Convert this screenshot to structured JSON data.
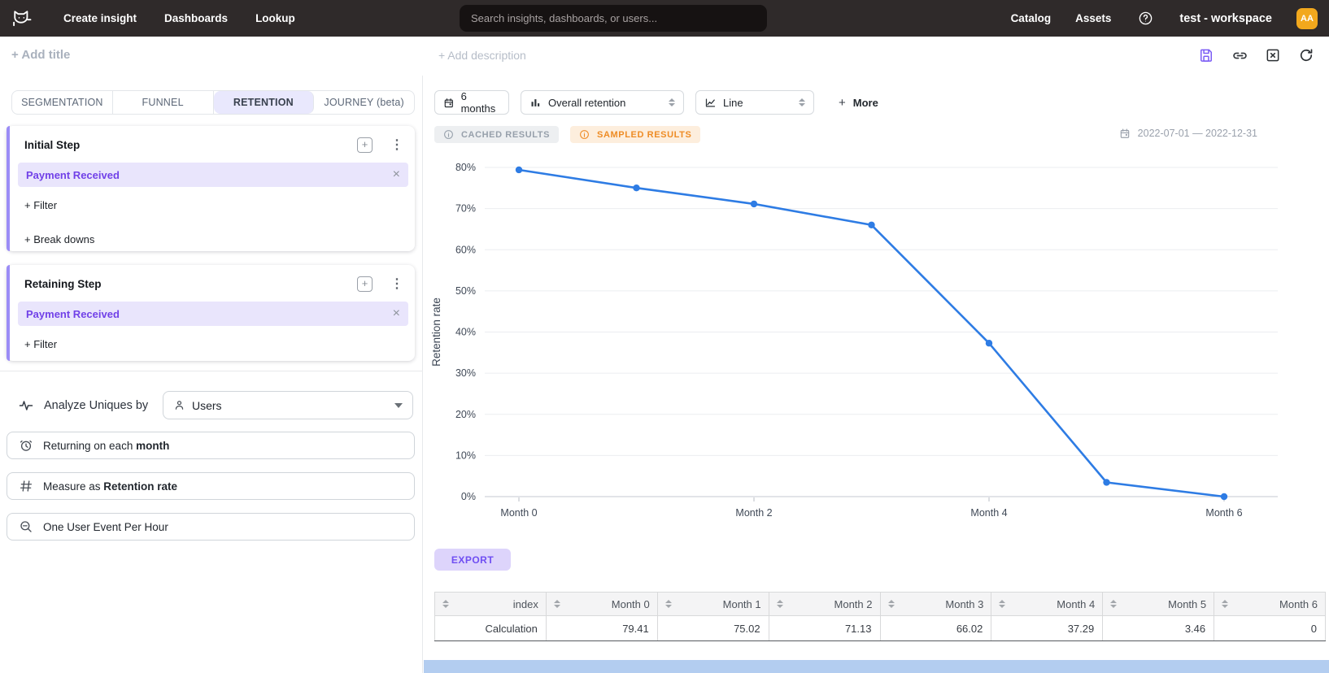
{
  "topnav": {
    "logo_name": "mitzu-cat-logo",
    "items": [
      {
        "label": "Create insight"
      },
      {
        "label": "Dashboards"
      },
      {
        "label": "Lookup"
      }
    ],
    "search_placeholder": "Search insights, dashboards, or users...",
    "right_items": [
      {
        "label": "Catalog"
      },
      {
        "label": "Assets"
      }
    ],
    "workspace": "test - workspace",
    "avatar_initials": "AA"
  },
  "header": {
    "add_title": "+ Add title",
    "add_description": "+ Add description",
    "action_icons": [
      "save-icon",
      "link-icon",
      "close-box-icon",
      "refresh-icon"
    ]
  },
  "tabs": [
    {
      "label": "SEGMENTATION",
      "active": false
    },
    {
      "label": "FUNNEL",
      "active": false
    },
    {
      "label": "RETENTION",
      "active": true
    },
    {
      "label": "JOURNEY (beta)",
      "active": false
    }
  ],
  "steps": [
    {
      "title": "Initial Step",
      "event": "Payment Received",
      "add_icon": "+",
      "actions": [
        "+ Filter",
        "+ Break downs"
      ]
    },
    {
      "title": "Retaining Step",
      "event": "Payment Received",
      "add_icon": "+",
      "actions": [
        "+ Filter"
      ]
    }
  ],
  "analyze": {
    "label": "Analyze Uniques by",
    "value": "Users"
  },
  "settings_buttons": [
    {
      "icon": "alarm-clock-icon",
      "prefix": "Returning on each ",
      "bold": "month"
    },
    {
      "icon": "hash-icon",
      "prefix": "Measure as ",
      "bold": "Retention rate"
    },
    {
      "icon": "zoom-out-icon",
      "prefix": "One User Event Per Hour",
      "bold": ""
    }
  ],
  "controls": {
    "period": "6 months",
    "metric": "Overall retention",
    "chart_type": "Line",
    "more_plus": "+",
    "more_label": "More"
  },
  "badges": [
    {
      "label": "CACHED RESULTS",
      "style": "cached"
    },
    {
      "label": "SAMPLED RESULTS",
      "style": "sampled"
    }
  ],
  "date_range": "2022-07-01 — 2022-12-31",
  "export_label": "EXPORT",
  "chart_data": {
    "type": "line",
    "title": "",
    "xlabel": "",
    "ylabel": "Retention rate",
    "x": [
      0,
      1,
      2,
      3,
      4,
      5,
      6
    ],
    "series": [
      {
        "name": "Overall retention",
        "values": [
          79.41,
          75.02,
          71.13,
          66.02,
          37.29,
          3.46,
          0
        ]
      }
    ],
    "xticks": [
      {
        "value": 0,
        "label": "Month 0"
      },
      {
        "value": 2,
        "label": "Month 2"
      },
      {
        "value": 4,
        "label": "Month 4"
      },
      {
        "value": 6,
        "label": "Month 6"
      }
    ],
    "yticks": [
      0,
      10,
      20,
      30,
      40,
      50,
      60,
      70,
      80
    ],
    "ytick_suffix": "%",
    "ylim": [
      0,
      84
    ],
    "grid": true,
    "legend_position": "none",
    "line_color": "#2e7ce4"
  },
  "table": {
    "columns": [
      "index",
      "Month 0",
      "Month 1",
      "Month 2",
      "Month 3",
      "Month 4",
      "Month 5",
      "Month 6"
    ],
    "rows": [
      [
        "Calculation",
        "79.41",
        "75.02",
        "71.13",
        "66.02",
        "37.29",
        "3.46",
        "0"
      ]
    ]
  },
  "colors": {
    "topnav_bg": "#2f2a2a",
    "accent_purple": "#7b5cf5",
    "chip_bg": "#e9e5fc",
    "chip_text": "#7141e8",
    "line_blue": "#2e7ce4",
    "sampled_orange": "#ee8c25",
    "avatar_amber": "#f2a81d",
    "export_bg": "#ddd4fb",
    "bottom_strip_blue": "#b3cdf0"
  }
}
